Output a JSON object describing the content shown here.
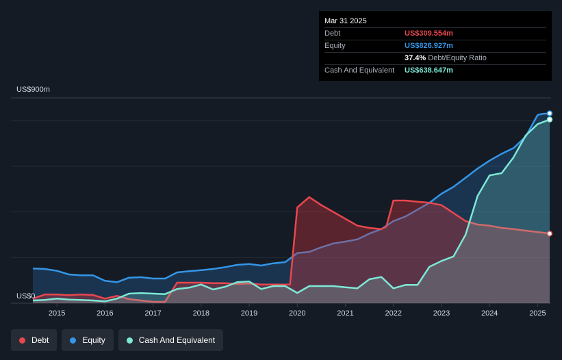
{
  "tooltip": {
    "date": "Mar 31 2025",
    "rows": [
      {
        "label": "Debt",
        "value": "US$309.554m",
        "color": "#e8474f"
      },
      {
        "label": "Equity",
        "value": "US$826.927m",
        "color": "#3496e8"
      },
      {
        "label": "",
        "value": "37.4%",
        "sub": "Debt/Equity Ratio",
        "color": "#ffffff"
      },
      {
        "label": "Cash And Equivalent",
        "value": "US$638.647m",
        "color": "#7de8d6"
      }
    ]
  },
  "legend": [
    {
      "label": "Debt",
      "color": "#e8474f"
    },
    {
      "label": "Equity",
      "color": "#3496e8"
    },
    {
      "label": "Cash And Equivalent",
      "color": "#7de8d6"
    }
  ],
  "chart_data": {
    "type": "area",
    "y_top_label": "US$900m",
    "y_bottom_label": "US$0",
    "ylim": [
      0,
      900
    ],
    "xlim": [
      2014.5,
      2025.25
    ],
    "x_ticks": [
      "2015",
      "2016",
      "2017",
      "2018",
      "2019",
      "2020",
      "2021",
      "2022",
      "2023",
      "2024",
      "2025"
    ],
    "grid": true,
    "series": [
      {
        "name": "Debt",
        "color": "#e8474f",
        "x": [
          2014.5,
          2014.75,
          2015.0,
          2015.25,
          2015.5,
          2015.75,
          2016.0,
          2016.25,
          2016.5,
          2016.75,
          2017.0,
          2017.25,
          2017.5,
          2017.75,
          2018.0,
          2018.25,
          2018.5,
          2018.75,
          2019.0,
          2019.25,
          2019.5,
          2019.75,
          2019.85,
          2020.0,
          2020.25,
          2020.5,
          2020.75,
          2021.0,
          2021.25,
          2021.5,
          2021.75,
          2021.85,
          2022.0,
          2022.25,
          2022.5,
          2022.75,
          2023.0,
          2023.25,
          2023.5,
          2023.75,
          2024.0,
          2024.25,
          2024.5,
          2024.75,
          2025.0,
          2025.25
        ],
        "values": [
          20,
          38,
          38,
          35,
          38,
          36,
          20,
          32,
          18,
          12,
          6,
          6,
          90,
          90,
          90,
          88,
          88,
          85,
          86,
          82,
          82,
          82,
          82,
          420,
          465,
          430,
          400,
          370,
          340,
          330,
          325,
          335,
          450,
          450,
          445,
          440,
          430,
          395,
          360,
          345,
          340,
          330,
          325,
          318,
          312,
          305
        ]
      },
      {
        "name": "Equity",
        "color": "#3496e8",
        "x": [
          2014.5,
          2014.75,
          2015.0,
          2015.25,
          2015.5,
          2015.75,
          2016.0,
          2016.25,
          2016.5,
          2016.75,
          2017.0,
          2017.25,
          2017.5,
          2017.75,
          2018.0,
          2018.25,
          2018.5,
          2018.75,
          2019.0,
          2019.25,
          2019.5,
          2019.75,
          2020.0,
          2020.25,
          2020.5,
          2020.75,
          2021.0,
          2021.25,
          2021.5,
          2021.75,
          2022.0,
          2022.25,
          2022.5,
          2022.75,
          2023.0,
          2023.25,
          2023.5,
          2023.75,
          2024.0,
          2024.25,
          2024.5,
          2024.75,
          2025.0,
          2025.1,
          2025.25
        ],
        "values": [
          152,
          150,
          142,
          126,
          122,
          122,
          98,
          92,
          112,
          114,
          108,
          108,
          135,
          140,
          145,
          150,
          158,
          168,
          172,
          165,
          175,
          180,
          220,
          225,
          245,
          262,
          270,
          280,
          305,
          325,
          360,
          380,
          410,
          440,
          480,
          510,
          550,
          590,
          625,
          655,
          680,
          730,
          825,
          830,
          832
        ]
      },
      {
        "name": "Cash And Equivalent",
        "color": "#7de8d6",
        "x": [
          2014.5,
          2014.75,
          2015.0,
          2015.25,
          2015.5,
          2015.75,
          2016.0,
          2016.25,
          2016.5,
          2016.75,
          2017.0,
          2017.25,
          2017.5,
          2017.75,
          2018.0,
          2018.25,
          2018.5,
          2018.75,
          2019.0,
          2019.25,
          2019.5,
          2019.75,
          2020.0,
          2020.25,
          2020.5,
          2020.75,
          2021.0,
          2021.25,
          2021.5,
          2021.75,
          2022.0,
          2022.25,
          2022.5,
          2022.75,
          2023.0,
          2023.25,
          2023.5,
          2023.75,
          2024.0,
          2024.25,
          2024.5,
          2024.75,
          2025.0,
          2025.25
        ],
        "values": [
          12,
          14,
          20,
          16,
          14,
          12,
          8,
          20,
          42,
          44,
          42,
          40,
          62,
          68,
          82,
          60,
          72,
          92,
          95,
          62,
          75,
          75,
          45,
          75,
          75,
          75,
          70,
          65,
          105,
          115,
          65,
          80,
          80,
          160,
          185,
          205,
          300,
          470,
          560,
          570,
          640,
          735,
          785,
          805
        ]
      }
    ]
  }
}
